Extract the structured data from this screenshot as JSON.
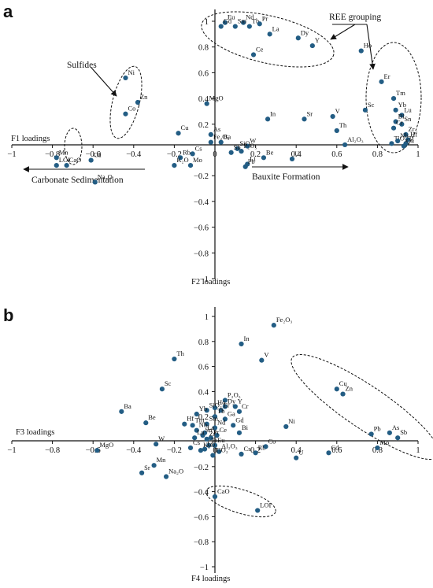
{
  "chart_data": [
    {
      "type": "scatter",
      "panel_label": "a",
      "xlabel": "F1 loadings",
      "ylabel": "F2 loadings",
      "xlim": [
        -1,
        1
      ],
      "ylim": [
        -1,
        1
      ],
      "x_ticks": [
        "−1",
        "−0.8",
        "−0.6",
        "−0.4",
        "−0.2",
        "0",
        "0.2",
        "0.4",
        "0.6",
        "0.8",
        "1"
      ],
      "y_ticks": [
        "1",
        "0.8",
        "0.6",
        "0.4",
        "0.2",
        "0",
        "−0.2",
        "−0.4",
        "−0.6",
        "−0.8",
        "−1"
      ],
      "annotations": [
        "REE grouping",
        "Sulfides",
        "Bauxite Formation",
        "Carbonate Sedimentation"
      ],
      "points": [
        {
          "label": "Eu",
          "x": 0.05,
          "y": 0.99
        },
        {
          "label": "Nd",
          "x": 0.14,
          "y": 0.99
        },
        {
          "label": "Gd",
          "x": 0.03,
          "y": 0.96
        },
        {
          "label": "Sm",
          "x": 0.1,
          "y": 0.96
        },
        {
          "label": "Tb",
          "x": 0.17,
          "y": 0.96
        },
        {
          "label": "Pr",
          "x": 0.22,
          "y": 0.98
        },
        {
          "label": "La",
          "x": 0.27,
          "y": 0.9
        },
        {
          "label": "Dy",
          "x": 0.41,
          "y": 0.87
        },
        {
          "label": "Y",
          "x": 0.48,
          "y": 0.81
        },
        {
          "label": "Ce",
          "x": 0.19,
          "y": 0.74
        },
        {
          "label": "Ho",
          "x": 0.72,
          "y": 0.77
        },
        {
          "label": "Er",
          "x": 0.82,
          "y": 0.53
        },
        {
          "label": "Tm",
          "x": 0.88,
          "y": 0.4
        },
        {
          "label": "Sc",
          "x": 0.74,
          "y": 0.31
        },
        {
          "label": "Yb",
          "x": 0.89,
          "y": 0.31
        },
        {
          "label": "Lu",
          "x": 0.92,
          "y": 0.27
        },
        {
          "label": "Bi",
          "x": 0.89,
          "y": 0.22
        },
        {
          "label": "Sn",
          "x": 0.92,
          "y": 0.2
        },
        {
          "label": "Cr",
          "x": 0.88,
          "y": 0.17
        },
        {
          "label": "Zr",
          "x": 0.94,
          "y": 0.12
        },
        {
          "label": "Hf",
          "x": 0.95,
          "y": 0.08
        },
        {
          "label": "Ti",
          "x": 0.94,
          "y": 0.05
        },
        {
          "label": "TiO₂",
          "x": 0.87,
          "y": 0.05
        },
        {
          "label": "Nb",
          "x": 0.9,
          "y": 0.07
        },
        {
          "label": "Ga",
          "x": 0.93,
          "y": 0.03
        },
        {
          "label": "In",
          "x": 0.26,
          "y": 0.24
        },
        {
          "label": "Sr",
          "x": 0.44,
          "y": 0.24
        },
        {
          "label": "V",
          "x": 0.58,
          "y": 0.26
        },
        {
          "label": "Th",
          "x": 0.6,
          "y": 0.15
        },
        {
          "label": "Al₂O₃",
          "x": 0.64,
          "y": 0.04
        },
        {
          "label": "U",
          "x": 0.38,
          "y": -0.07
        },
        {
          "label": "Be",
          "x": 0.24,
          "y": -0.06
        },
        {
          "label": "W",
          "x": 0.16,
          "y": 0.03
        },
        {
          "label": "SiO₂",
          "x": 0.11,
          "y": 0.01
        },
        {
          "label": "P₂O₅",
          "x": 0.13,
          "y": -0.01
        },
        {
          "label": "Sb",
          "x": 0.08,
          "y": -0.02
        },
        {
          "label": "Li",
          "x": 0.16,
          "y": -0.11
        },
        {
          "label": "Pb",
          "x": 0.15,
          "y": -0.13
        },
        {
          "label": "Ba",
          "x": 0.03,
          "y": 0.06
        },
        {
          "label": "Fe₂O₃",
          "x": -0.02,
          "y": 0.06
        },
        {
          "label": "As",
          "x": -0.02,
          "y": 0.12
        },
        {
          "label": "MgO",
          "x": -0.04,
          "y": 0.36
        },
        {
          "label": "Cu",
          "x": -0.18,
          "y": 0.13
        },
        {
          "label": "Rb",
          "x": -0.17,
          "y": -0.06
        },
        {
          "label": "Cs",
          "x": -0.11,
          "y": -0.03
        },
        {
          "label": "Mo",
          "x": -0.12,
          "y": -0.12
        },
        {
          "label": "K₂O",
          "x": -0.2,
          "y": -0.12
        },
        {
          "label": "Ni",
          "x": -0.44,
          "y": 0.56
        },
        {
          "label": "Zn",
          "x": -0.38,
          "y": 0.37
        },
        {
          "label": "Co",
          "x": -0.44,
          "y": 0.28
        },
        {
          "label": "Mn",
          "x": -0.78,
          "y": -0.06
        },
        {
          "label": "Cd",
          "x": -0.61,
          "y": -0.08
        },
        {
          "label": "LOI",
          "x": -0.78,
          "y": -0.12
        },
        {
          "label": "CaO",
          "x": -0.73,
          "y": -0.12
        },
        {
          "label": "Na₂O",
          "x": -0.59,
          "y": -0.25
        }
      ]
    },
    {
      "type": "scatter",
      "panel_label": "b",
      "xlabel": "F3 loadings",
      "ylabel": "F4 loadings",
      "xlim": [
        -1,
        1
      ],
      "ylim": [
        -1,
        1
      ],
      "x_ticks": [
        "−1",
        "−0.8",
        "−0.6",
        "−0.4",
        "−0.2",
        "0",
        "0.2",
        "0.4",
        "0.6",
        "0.8",
        "1"
      ],
      "y_ticks": [
        "1",
        "0.8",
        "0.6",
        "0.4",
        "0.2",
        "0",
        "−0.2",
        "−0.4",
        "−0.6",
        "−0.8",
        "−1"
      ],
      "annotations": [],
      "points": [
        {
          "label": "Fe₂O₃",
          "x": 0.29,
          "y": 0.93
        },
        {
          "label": "In",
          "x": 0.13,
          "y": 0.78
        },
        {
          "label": "V",
          "x": 0.23,
          "y": 0.65
        },
        {
          "label": "Th",
          "x": -0.2,
          "y": 0.66
        },
        {
          "label": "Sc",
          "x": -0.26,
          "y": 0.42
        },
        {
          "label": "P₂O₅",
          "x": 0.05,
          "y": 0.33
        },
        {
          "label": "Ho",
          "x": 0.0,
          "y": 0.27
        },
        {
          "label": "Dy",
          "x": 0.05,
          "y": 0.28
        },
        {
          "label": "Y",
          "x": 0.1,
          "y": 0.28
        },
        {
          "label": "Er",
          "x": 0.03,
          "y": 0.25
        },
        {
          "label": "SiO₂",
          "x": -0.04,
          "y": 0.25
        },
        {
          "label": "Cr",
          "x": 0.12,
          "y": 0.24
        },
        {
          "label": "Ba",
          "x": -0.46,
          "y": 0.24
        },
        {
          "label": "Yb",
          "x": -0.09,
          "y": 0.22
        },
        {
          "label": "Tb",
          "x": 0.0,
          "y": 0.2
        },
        {
          "label": "Be",
          "x": -0.34,
          "y": 0.15
        },
        {
          "label": "Hf",
          "x": -0.15,
          "y": 0.14
        },
        {
          "label": "Ga",
          "x": 0.05,
          "y": 0.18
        },
        {
          "label": "Gd",
          "x": 0.09,
          "y": 0.13
        },
        {
          "label": "Tm",
          "x": -0.11,
          "y": 0.13
        },
        {
          "label": "Sm",
          "x": -0.04,
          "y": 0.14
        },
        {
          "label": "Nd",
          "x": 0.0,
          "y": 0.11
        },
        {
          "label": "Nb",
          "x": -0.09,
          "y": 0.09
        },
        {
          "label": "Bi",
          "x": 0.12,
          "y": 0.07
        },
        {
          "label": "La",
          "x": -0.05,
          "y": 0.07
        },
        {
          "label": "Ce",
          "x": 0.01,
          "y": 0.05
        },
        {
          "label": "Pr",
          "x": -0.02,
          "y": 0.03
        },
        {
          "label": "Sn",
          "x": -0.06,
          "y": 0.05
        },
        {
          "label": "Lu",
          "x": -0.1,
          "y": 0.03
        },
        {
          "label": "Zr",
          "x": -0.04,
          "y": 0.02
        },
        {
          "label": "W",
          "x": -0.29,
          "y": -0.02
        },
        {
          "label": "Ti",
          "x": -0.03,
          "y": -0.03
        },
        {
          "label": "Cs",
          "x": -0.12,
          "y": -0.05
        },
        {
          "label": "Eu",
          "x": 0.0,
          "y": -0.03
        },
        {
          "label": "Li",
          "x": -0.05,
          "y": -0.06
        },
        {
          "label": "Al₂O₃",
          "x": 0.02,
          "y": -0.08
        },
        {
          "label": "TiO₂",
          "x": -0.01,
          "y": -0.11
        },
        {
          "label": "K₂O",
          "x": -0.07,
          "y": -0.07
        },
        {
          "label": "MgO",
          "x": -0.58,
          "y": -0.07
        },
        {
          "label": "Cs",
          "x": 0.13,
          "y": -0.1
        },
        {
          "label": "Rb",
          "x": 0.2,
          "y": -0.09
        },
        {
          "label": "Co",
          "x": 0.25,
          "y": -0.04
        },
        {
          "label": "U",
          "x": 0.4,
          "y": -0.13
        },
        {
          "label": "Cd",
          "x": 0.56,
          "y": -0.09
        },
        {
          "label": "Ni",
          "x": 0.35,
          "y": 0.12
        },
        {
          "label": "Cu",
          "x": 0.6,
          "y": 0.42
        },
        {
          "label": "Zn",
          "x": 0.63,
          "y": 0.38
        },
        {
          "label": "Pb",
          "x": 0.77,
          "y": 0.06
        },
        {
          "label": "As",
          "x": 0.86,
          "y": 0.07
        },
        {
          "label": "Sb",
          "x": 0.9,
          "y": 0.03
        },
        {
          "label": "Mo",
          "x": 0.8,
          "y": -0.05
        },
        {
          "label": "Mn",
          "x": -0.3,
          "y": -0.19
        },
        {
          "label": "Sr",
          "x": -0.36,
          "y": -0.25
        },
        {
          "label": "Na₂O",
          "x": -0.24,
          "y": -0.28
        },
        {
          "label": "CaO",
          "x": 0.0,
          "y": -0.44
        },
        {
          "label": "LOI",
          "x": 0.21,
          "y": -0.55
        }
      ]
    }
  ]
}
